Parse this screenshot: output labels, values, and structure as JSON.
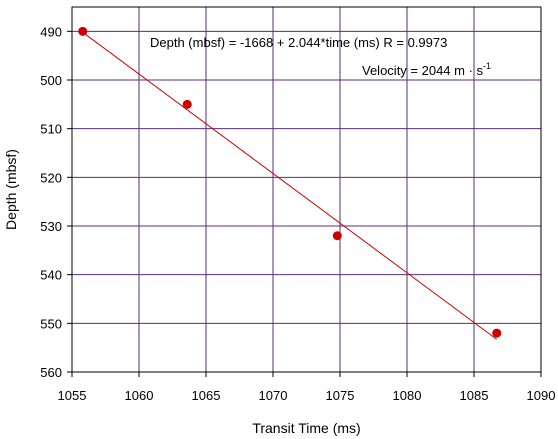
{
  "chart_data": {
    "type": "scatter",
    "xlabel": "Transit Time (ms)",
    "ylabel": "Depth (mbsf)",
    "xlim": [
      1055,
      1090
    ],
    "ylim": [
      560,
      485
    ],
    "y_axis_inverted": true,
    "x_ticks": [
      1055,
      1060,
      1065,
      1070,
      1075,
      1080,
      1085,
      1090
    ],
    "y_ticks": [
      490,
      500,
      510,
      520,
      530,
      540,
      550,
      560
    ],
    "grid": true,
    "grid_color": "#5a2d7a",
    "marker_color": "#cc0000",
    "line_color": "#cc0000",
    "points": [
      {
        "x": 1055.8,
        "y": 490
      },
      {
        "x": 1063.6,
        "y": 505
      },
      {
        "x": 1074.8,
        "y": 532
      },
      {
        "x": 1086.7,
        "y": 552
      }
    ],
    "fit_line": {
      "x_start": 1055.8,
      "y_start": 490.2,
      "x_end": 1086.7,
      "y_end": 553.3
    },
    "annotations": {
      "equation": "Depth (mbsf) = -1668 + 2.044*time (ms)  R = 0.9973",
      "velocity_prefix": "Velocity = 2044 m · s",
      "velocity_exponent": "-1"
    }
  }
}
